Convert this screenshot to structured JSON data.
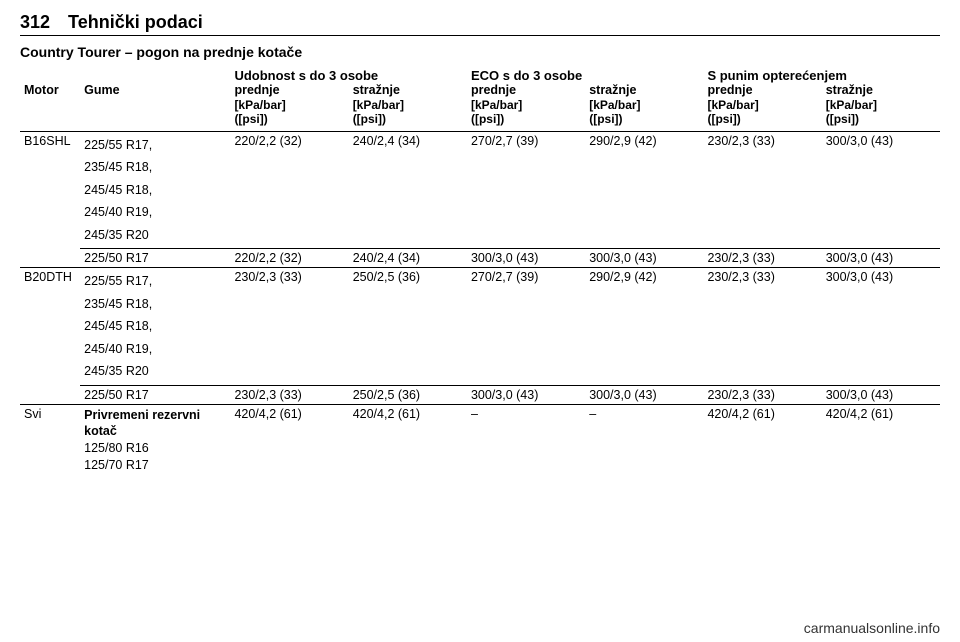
{
  "page_number": "312",
  "section_title": "Tehnički podaci",
  "subtitle": "Country Tourer – pogon na prednje kotače",
  "header": {
    "motor": "Motor",
    "gume": "Gume",
    "group1": "Udobnost s do 3 osobe",
    "group2": "ECO s do 3 osobe",
    "group3": "S punim opterećenjem",
    "prednje": "prednje",
    "straznje": "stražnje",
    "unit_line1": "[kPa/bar]",
    "unit_line2": "([psi])"
  },
  "rows": [
    {
      "motor": "B16SHL",
      "tyres_a": [
        "225/55 R17,",
        "235/45 R18,",
        "245/45 R18,",
        "245/40 R19,",
        "245/35 R20"
      ],
      "a": {
        "p": "220/2,2 (32)",
        "s": "240/2,4 (34)",
        "ep": "270/2,7 (39)",
        "es": "290/2,9 (42)",
        "fp": "230/2,3 (33)",
        "fs": "300/3,0 (43)"
      },
      "tyres_b": "225/50 R17",
      "b": {
        "p": "220/2,2 (32)",
        "s": "240/2,4 (34)",
        "ep": "300/3,0 (43)",
        "es": "300/3,0 (43)",
        "fp": "230/2,3 (33)",
        "fs": "300/3,0 (43)"
      }
    },
    {
      "motor": "B20DTH",
      "tyres_a": [
        "225/55 R17,",
        "235/45 R18,",
        "245/45 R18,",
        "245/40 R19,",
        "245/35 R20"
      ],
      "a": {
        "p": "230/2,3 (33)",
        "s": "250/2,5 (36)",
        "ep": "270/2,7 (39)",
        "es": "290/2,9 (42)",
        "fp": "230/2,3 (33)",
        "fs": "300/3,0 (43)"
      },
      "tyres_b": "225/50 R17",
      "b": {
        "p": "230/2,3 (33)",
        "s": "250/2,5 (36)",
        "ep": "300/3,0 (43)",
        "es": "300/3,0 (43)",
        "fp": "230/2,3 (33)",
        "fs": "300/3,0 (43)"
      }
    },
    {
      "motor": "Svi",
      "tyres_a": [
        "Privremeni rezervni kotač",
        "125/80 R16",
        "125/70 R17"
      ],
      "a": {
        "p": "420/4,2 (61)",
        "s": "420/4,2 (61)",
        "ep": "–",
        "es": "–",
        "fp": "420/4,2 (61)",
        "fs": "420/4,2 (61)"
      }
    }
  ],
  "footer": "carmanualsonline.info"
}
